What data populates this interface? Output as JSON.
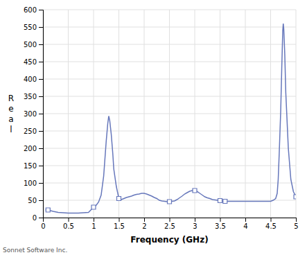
{
  "chart_data": {
    "type": "line",
    "xlabel": "Frequency (GHz)",
    "ylabel": "Real",
    "annotations": [
      "Sonnet Software Inc."
    ],
    "xlim": [
      0,
      5
    ],
    "ylim": [
      0,
      600
    ],
    "xticks": [
      0,
      0.5,
      1,
      1.5,
      2,
      2.5,
      3,
      3.5,
      4,
      4.5,
      5
    ],
    "yticks": [
      0,
      50,
      100,
      150,
      200,
      250,
      300,
      350,
      400,
      450,
      500,
      550,
      600
    ],
    "grid": true,
    "series": [
      {
        "type": "line",
        "color": "#6677bb",
        "x": [
          0.05,
          0.1,
          0.2,
          0.3,
          0.4,
          0.5,
          0.6,
          0.7,
          0.8,
          0.9,
          1.0,
          1.05,
          1.1,
          1.15,
          1.2,
          1.25,
          1.28,
          1.3,
          1.32,
          1.35,
          1.38,
          1.4,
          1.45,
          1.5,
          1.55,
          1.6,
          1.65,
          1.7,
          1.75,
          1.8,
          1.85,
          1.9,
          1.95,
          2.0,
          2.05,
          2.1,
          2.15,
          2.2,
          2.25,
          2.3,
          2.35,
          2.4,
          2.45,
          2.5,
          2.55,
          2.6,
          2.65,
          2.7,
          2.75,
          2.8,
          2.85,
          2.9,
          2.95,
          3.0,
          3.05,
          3.1,
          3.15,
          3.2,
          3.25,
          3.3,
          3.35,
          3.4,
          3.45,
          3.5,
          3.55,
          3.6,
          3.65,
          3.7,
          3.75,
          3.8,
          3.85,
          3.9,
          3.95,
          4.0,
          4.1,
          4.2,
          4.3,
          4.4,
          4.5,
          4.55,
          4.6,
          4.63,
          4.65,
          4.67,
          4.7,
          4.72,
          4.74,
          4.75,
          4.76,
          4.78,
          4.8,
          4.85,
          4.9,
          4.95,
          5.0
        ],
        "values": [
          22,
          22,
          18,
          15,
          14,
          13,
          13,
          13,
          14,
          15,
          30,
          35,
          45,
          65,
          120,
          220,
          270,
          293,
          280,
          240,
          185,
          140,
          90,
          55,
          52,
          55,
          58,
          60,
          62,
          65,
          67,
          68,
          70,
          70,
          68,
          65,
          62,
          58,
          55,
          50,
          48,
          47,
          46,
          46,
          47,
          48,
          52,
          57,
          62,
          68,
          72,
          76,
          78,
          78,
          75,
          70,
          65,
          60,
          57,
          55,
          52,
          51,
          50,
          49,
          48,
          47,
          47,
          47,
          47,
          47,
          47,
          47,
          47,
          47,
          47,
          47,
          47,
          47,
          47,
          50,
          55,
          70,
          110,
          185,
          310,
          430,
          540,
          560,
          545,
          470,
          360,
          200,
          110,
          75,
          60
        ]
      },
      {
        "type": "scatter",
        "marker": "square",
        "color": "#6677bb",
        "x": [
          0.1,
          1.0,
          1.5,
          2.5,
          3.0,
          3.5,
          3.6,
          5.0
        ],
        "values": [
          22,
          30,
          55,
          46,
          78,
          49,
          47,
          60
        ]
      }
    ]
  }
}
